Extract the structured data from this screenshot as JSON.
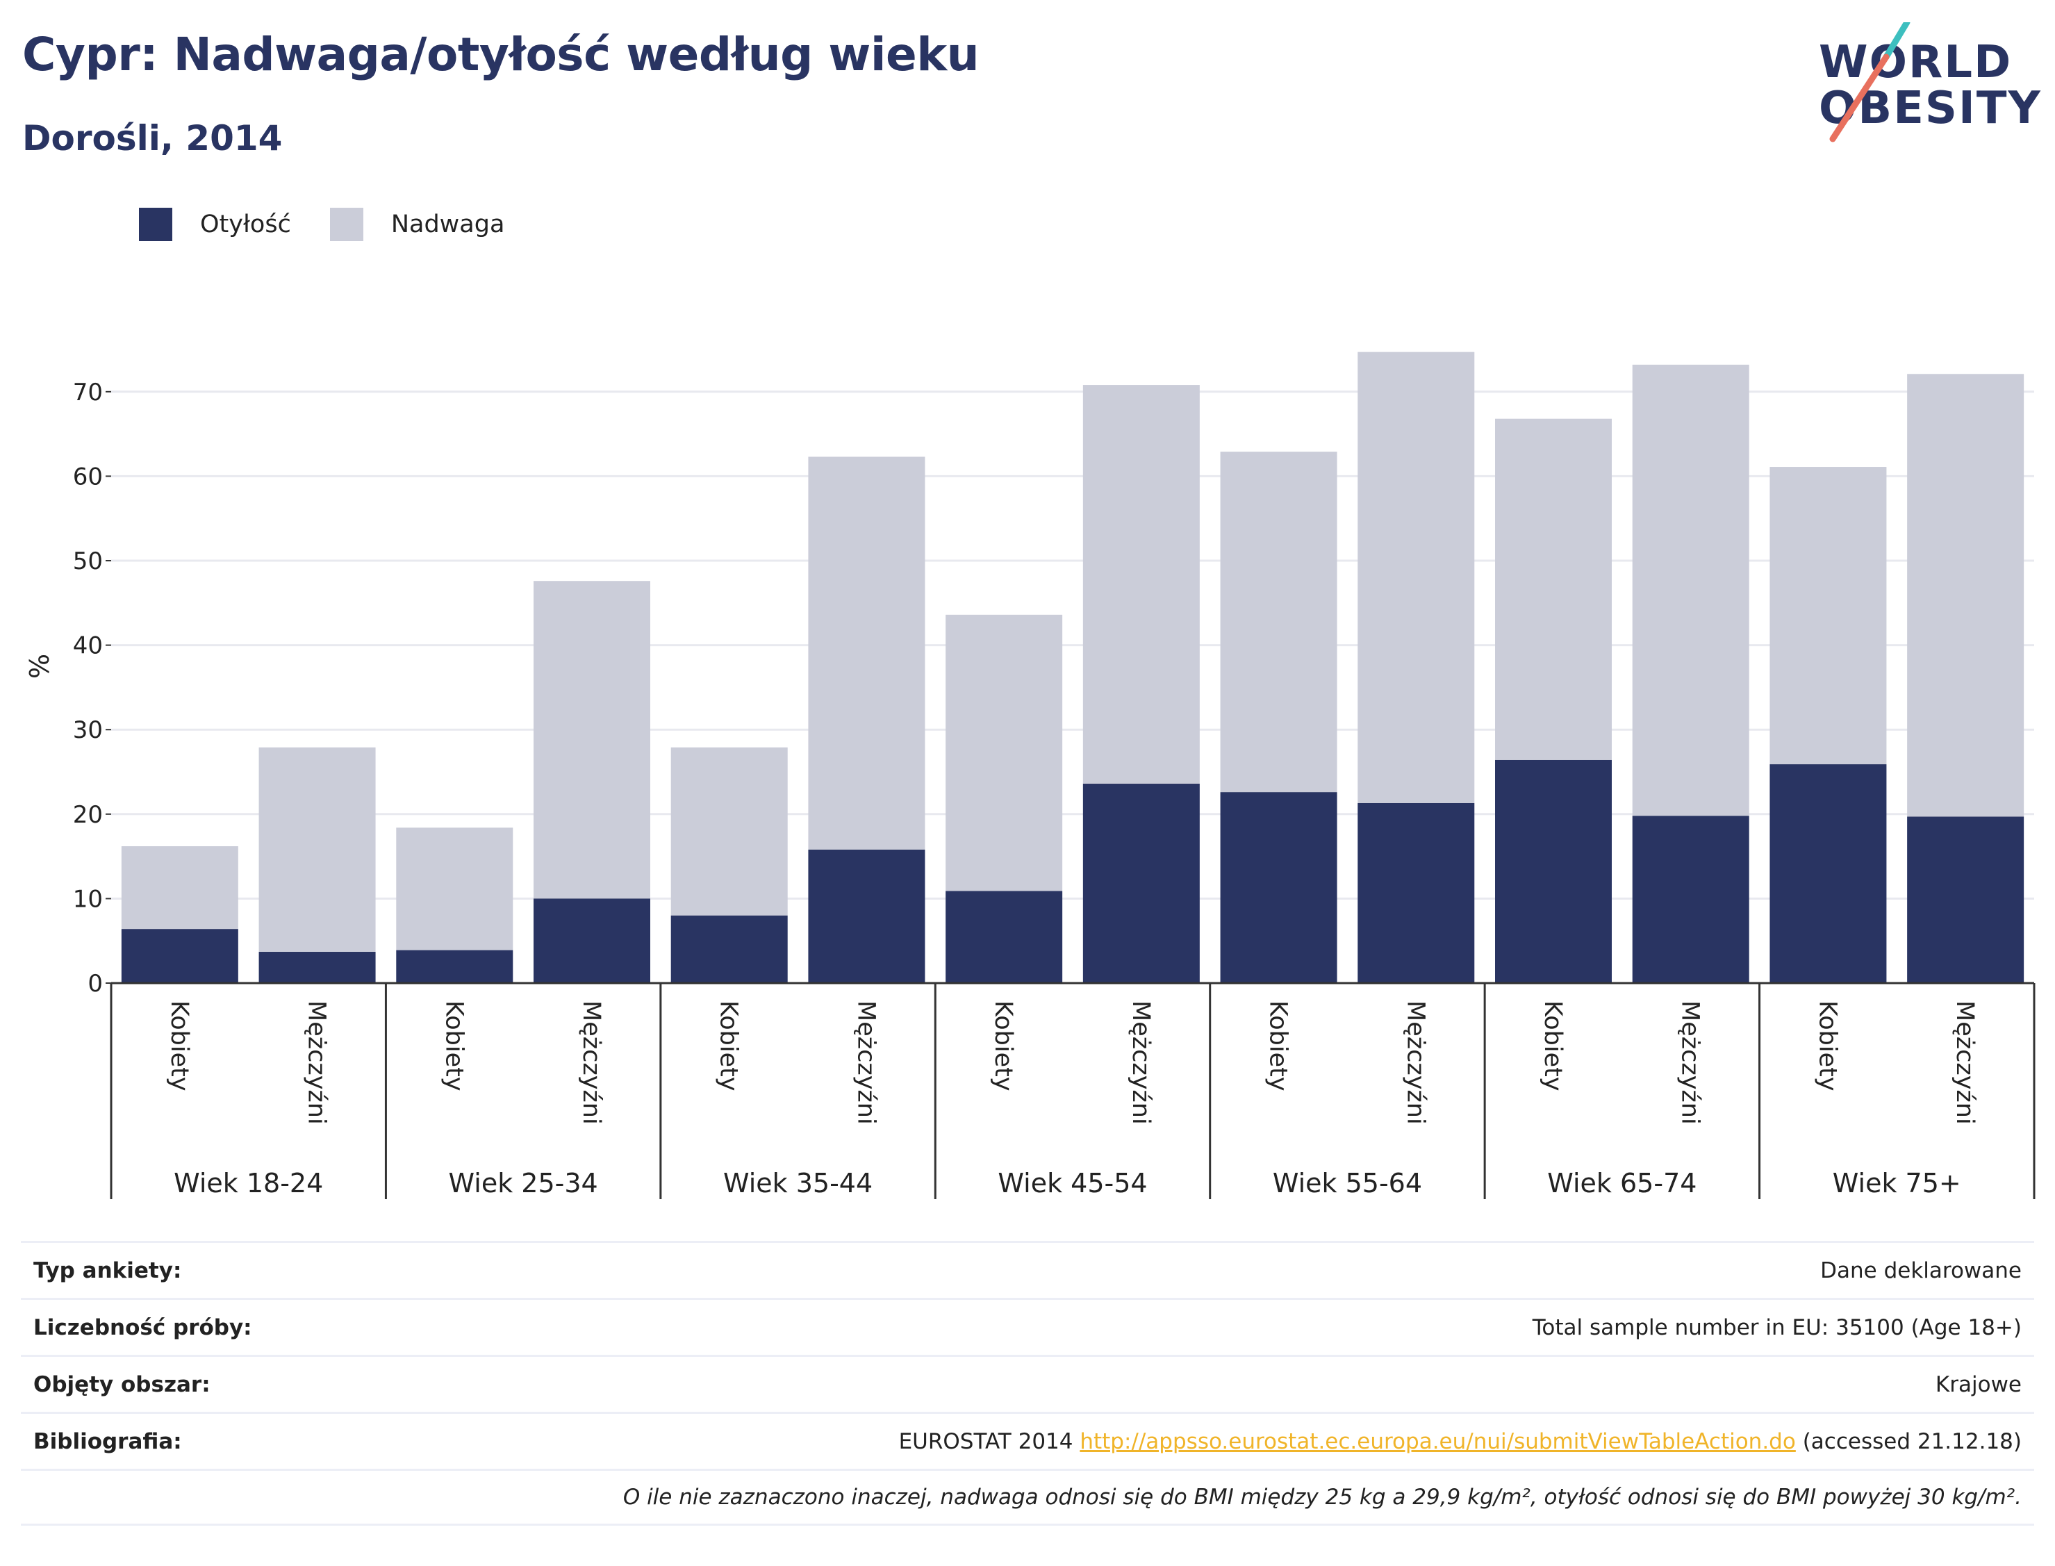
{
  "header": {
    "title": "Cypr: Nadwaga/otyłość według wieku",
    "subtitle": "Dorośli, 2014",
    "logo_line1": "WORLD",
    "logo_line2": "OBESITY"
  },
  "legend": {
    "obesity_label": "Otyłość",
    "overweight_label": "Nadwaga"
  },
  "colors": {
    "obesity": "#293462",
    "overweight": "#cbcdd9",
    "grid": "#e8e9ef",
    "axis": "#333333",
    "accent_teal": "#3dbfbf",
    "accent_coral": "#e8705e",
    "link": "#f0b429"
  },
  "chart_data": {
    "type": "bar",
    "stacked": true,
    "ylabel": "%",
    "ylim": [
      0,
      75
    ],
    "yticks": [
      0,
      10,
      20,
      30,
      40,
      50,
      60,
      70
    ],
    "grid": true,
    "legend_position": "top-left",
    "groups": [
      "Wiek 18-24",
      "Wiek 25-34",
      "Wiek 35-44",
      "Wiek 45-54",
      "Wiek 55-64",
      "Wiek 65-74",
      "Wiek 75+"
    ],
    "subcategories": [
      "Kobiety",
      "Mężczyźni"
    ],
    "categories": [
      "Wiek 18-24 Kobiety",
      "Wiek 18-24 Mężczyźni",
      "Wiek 25-34 Kobiety",
      "Wiek 25-34 Mężczyźni",
      "Wiek 35-44 Kobiety",
      "Wiek 35-44 Mężczyźni",
      "Wiek 45-54 Kobiety",
      "Wiek 45-54 Mężczyźni",
      "Wiek 55-64 Kobiety",
      "Wiek 55-64 Mężczyźni",
      "Wiek 65-74 Kobiety",
      "Wiek 65-74 Mężczyźni",
      "Wiek 75+ Kobiety",
      "Wiek 75+ Mężczyźni"
    ],
    "series": [
      {
        "name": "Otyłość",
        "values": [
          6.4,
          3.7,
          3.9,
          10.0,
          8.0,
          15.8,
          10.9,
          23.6,
          22.6,
          21.3,
          26.4,
          19.8,
          25.9,
          19.7
        ]
      },
      {
        "name": "Nadwaga",
        "values": [
          9.8,
          24.2,
          14.5,
          37.6,
          19.9,
          46.5,
          32.7,
          47.2,
          40.3,
          53.4,
          40.4,
          53.4,
          35.2,
          52.4
        ]
      }
    ]
  },
  "info": {
    "survey_type_label": "Typ ankiety:",
    "survey_type_value": "Dane deklarowane",
    "sample_label": "Liczebność próby:",
    "sample_value": "Total sample number in EU: 35100 (Age 18+)",
    "area_label": "Objęty obszar:",
    "area_value": "Krajowe",
    "bibliography_label": "Bibliografia:",
    "bibliography_prefix": "EUROSTAT 2014",
    "bibliography_link": "http://appsso.eurostat.ec.europa.eu/nui/submitViewTableAction.do",
    "bibliography_suffix": "(accessed 21.12.18)",
    "note": "O ile nie zaznaczono inaczej, nadwaga odnosi się do BMI między 25 kg a 29,9 kg/m², otyłość odnosi się do BMI powyżej 30 kg/m²."
  }
}
